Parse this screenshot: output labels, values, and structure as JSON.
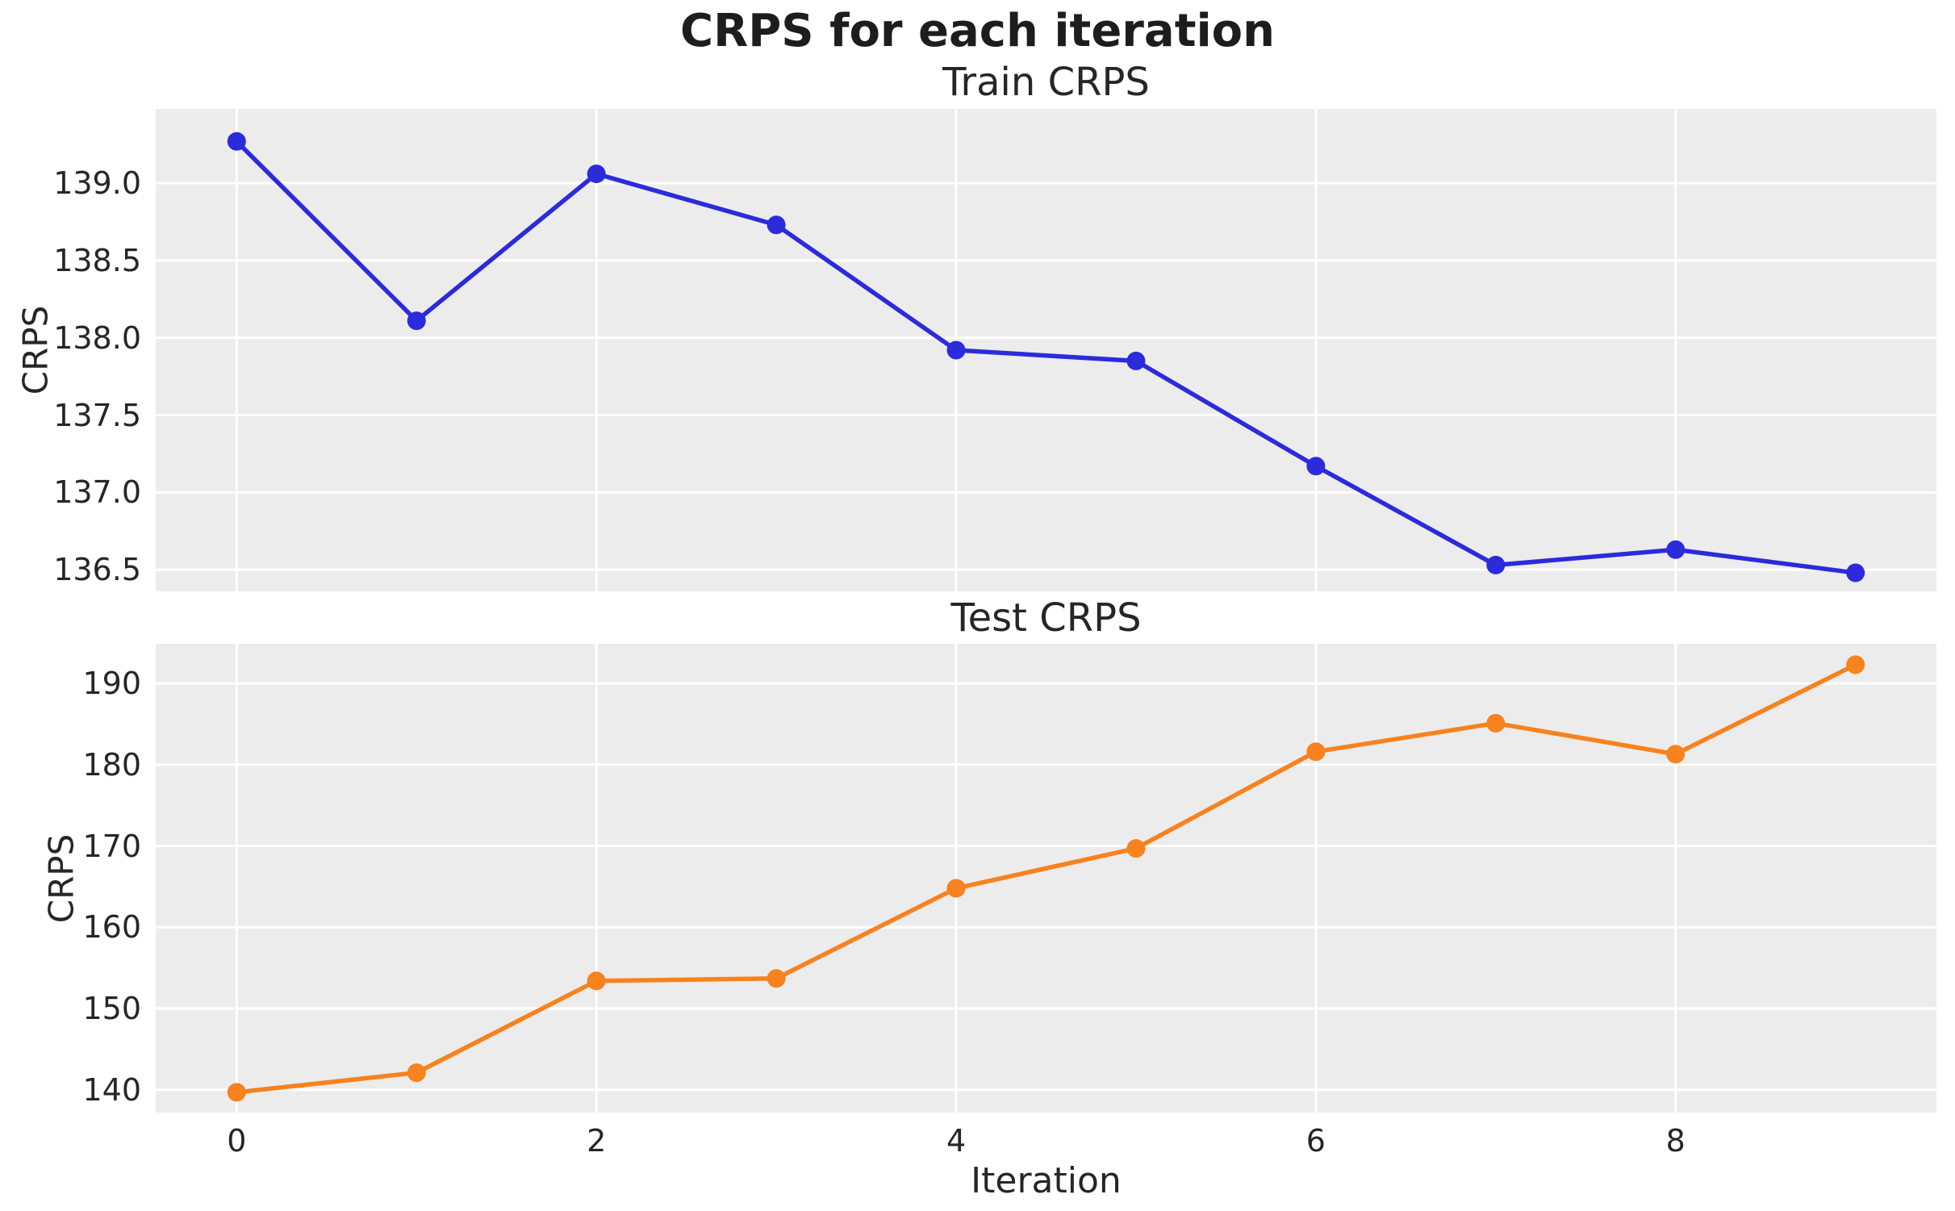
{
  "figure": {
    "title": "CRPS for each iteration",
    "text_color": "#262626",
    "axes_background": "#ececec",
    "gridline_color": "#ffffff"
  },
  "chart_data": [
    {
      "type": "line",
      "title": "Train CRPS",
      "ylabel": "CRPS",
      "xlabel": "",
      "series_name": "train-crps",
      "color": "#2b2bdb",
      "marker": "circle",
      "x": [
        0,
        1,
        2,
        3,
        4,
        5,
        6,
        7,
        8,
        9
      ],
      "values": [
        139.27,
        138.11,
        139.06,
        138.73,
        137.92,
        137.85,
        137.17,
        136.53,
        136.63,
        136.48
      ],
      "yticks": [
        139.0,
        138.5,
        138.0,
        137.5,
        137.0,
        136.5
      ],
      "ytick_labels": [
        "139.0",
        "138.5",
        "138.0",
        "137.5",
        "137.0",
        "136.5"
      ],
      "xticks": [
        0,
        2,
        4,
        6,
        8
      ],
      "xtick_labels": [],
      "ylim": [
        136.36,
        139.48
      ],
      "xlim": [
        -0.45,
        9.45
      ],
      "grid": true,
      "legend": "none"
    },
    {
      "type": "line",
      "title": "Test CRPS",
      "ylabel": "CRPS",
      "xlabel": "Iteration",
      "series_name": "test-crps",
      "color": "#f7821e",
      "marker": "circle",
      "x": [
        0,
        1,
        2,
        3,
        4,
        5,
        6,
        7,
        8,
        9
      ],
      "values": [
        139.7,
        142.1,
        153.4,
        153.7,
        164.8,
        169.7,
        181.6,
        185.1,
        181.3,
        192.3
      ],
      "yticks": [
        190,
        180,
        170,
        160,
        150,
        140
      ],
      "ytick_labels": [
        "190",
        "180",
        "170",
        "160",
        "150",
        "140"
      ],
      "xticks": [
        0,
        2,
        4,
        6,
        8
      ],
      "xtick_labels": [
        "0",
        "2",
        "4",
        "6",
        "8"
      ],
      "ylim": [
        137.2,
        194.87
      ],
      "xlim": [
        -0.45,
        9.45
      ],
      "grid": true,
      "legend": "none"
    }
  ]
}
